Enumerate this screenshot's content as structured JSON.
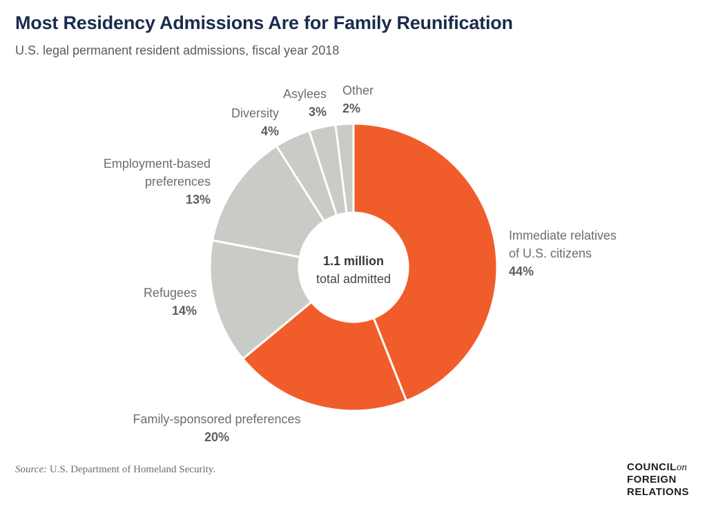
{
  "title": "Most Residency Admissions Are for Family Reunification",
  "subtitle": "U.S. legal permanent resident admissions, fiscal year 2018",
  "source": {
    "prefix": "Source:",
    "text": " U.S. Department of Homeland Security."
  },
  "logo": {
    "line1": "COUNCIL",
    "line1_on": "on",
    "line2": "FOREIGN",
    "line3": "RELATIONS"
  },
  "colors": {
    "highlight": "#f15d2a",
    "muted": "#c9ccc6",
    "title": "#1b2b4b"
  },
  "chart_data": {
    "type": "pie",
    "donut": true,
    "center": {
      "value": "1.1 million",
      "label": "total admitted"
    },
    "slices": [
      {
        "label_lines": [
          "Immediate relatives",
          "of U.S. citizens"
        ],
        "pct_label": "44%",
        "value": 44,
        "highlight": true
      },
      {
        "label_lines": [
          "Family-sponsored preferences"
        ],
        "pct_label": "20%",
        "value": 20,
        "highlight": true
      },
      {
        "label_lines": [
          "Refugees"
        ],
        "pct_label": "14%",
        "value": 14,
        "highlight": false
      },
      {
        "label_lines": [
          "Employment-based",
          "preferences"
        ],
        "pct_label": "13%",
        "value": 13,
        "highlight": false
      },
      {
        "label_lines": [
          "Diversity"
        ],
        "pct_label": "4%",
        "value": 4,
        "highlight": false
      },
      {
        "label_lines": [
          "Asylees"
        ],
        "pct_label": "3%",
        "value": 3,
        "highlight": false
      },
      {
        "label_lines": [
          "Other"
        ],
        "pct_label": "2%",
        "value": 2,
        "highlight": false
      }
    ]
  }
}
